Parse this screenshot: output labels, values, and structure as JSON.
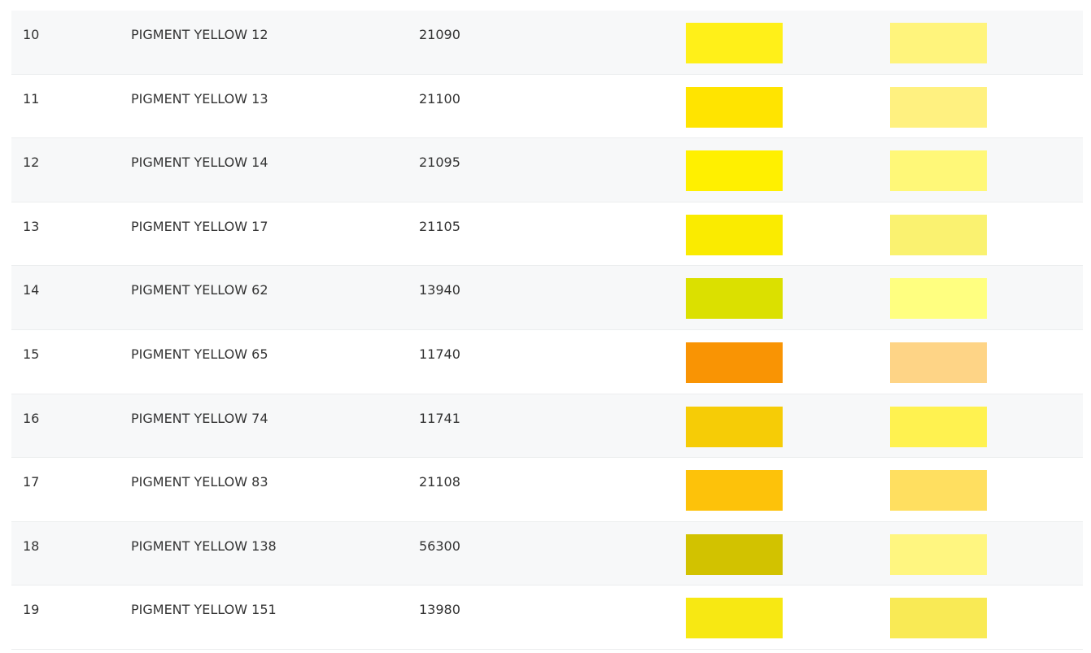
{
  "table": {
    "rows": [
      {
        "index": "10",
        "name": "PIGMENT YELLOW 12",
        "ci": "21090",
        "full_color": "#FFF019",
        "tint_color": "#FFF47C"
      },
      {
        "index": "11",
        "name": "PIGMENT YELLOW 13",
        "ci": "21100",
        "full_color": "#FFE400",
        "tint_color": "#FFF180"
      },
      {
        "index": "12",
        "name": "PIGMENT YELLOW 14",
        "ci": "21095",
        "full_color": "#FFF000",
        "tint_color": "#FFF878"
      },
      {
        "index": "13",
        "name": "PIGMENT YELLOW 17",
        "ci": "21105",
        "full_color": "#FAEB00",
        "tint_color": "#FAF270"
      },
      {
        "index": "14",
        "name": "PIGMENT YELLOW 62",
        "ci": "13940",
        "full_color": "#DBE000",
        "tint_color": "#FFFF80"
      },
      {
        "index": "15",
        "name": "PIGMENT YELLOW 65",
        "ci": "11740",
        "full_color": "#F99404",
        "tint_color": "#FED486"
      },
      {
        "index": "16",
        "name": "PIGMENT YELLOW 74",
        "ci": "11741",
        "full_color": "#F6CC06",
        "tint_color": "#FFF250"
      },
      {
        "index": "17",
        "name": "PIGMENT YELLOW 83",
        "ci": "21108",
        "full_color": "#FDC20A",
        "tint_color": "#FFDF60"
      },
      {
        "index": "18",
        "name": "PIGMENT YELLOW 138",
        "ci": "56300",
        "full_color": "#D2C200",
        "tint_color": "#FFF680"
      },
      {
        "index": "19",
        "name": "PIGMENT YELLOW 151",
        "ci": "13980",
        "full_color": "#F7E813",
        "tint_color": "#F9EA55"
      }
    ]
  }
}
